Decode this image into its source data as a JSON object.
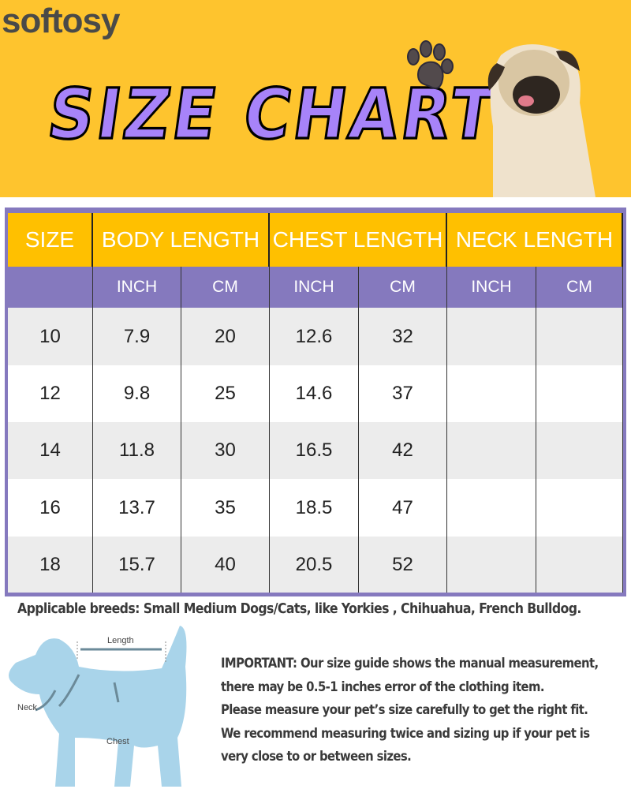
{
  "brand": "softosy",
  "title": "SIZE CHART",
  "colors": {
    "banner": "#fec42e",
    "title": "#a783f9",
    "header": "#ffc000",
    "subheader": "#8579be",
    "row_alt": "#ececec"
  },
  "table": {
    "headers": [
      "SIZE",
      "BODY LENGTH",
      "CHEST LENGTH",
      "NECK LENGTH"
    ],
    "subheaders": [
      "",
      "INCH",
      "CM",
      "INCH",
      "CM",
      "INCH",
      "CM"
    ],
    "rows": [
      [
        "10",
        "7.9",
        "20",
        "12.6",
        "32",
        "",
        ""
      ],
      [
        "12",
        "9.8",
        "25",
        "14.6",
        "37",
        "",
        ""
      ],
      [
        "14",
        "11.8",
        "30",
        "16.5",
        "42",
        "",
        ""
      ],
      [
        "16",
        "13.7",
        "35",
        "18.5",
        "47",
        "",
        ""
      ],
      [
        "18",
        "15.7",
        "40",
        "20.5",
        "52",
        "",
        ""
      ]
    ]
  },
  "breeds": "Applicable breeds: Small Medium Dogs/Cats, like Yorkies , Chihuahua, French Bulldog.",
  "diagram": {
    "length": "Length",
    "neck": "Neck",
    "chest": "Chest"
  },
  "important": [
    "IMPORTANT: Our size guide shows the manual measurement,",
    "there may be 0.5-1 inches error of the clothing item.",
    "Please measure your pet’s size carefully to get the right fit.",
    "We recommend measuring twice and sizing up if your pet is",
    "very close to or between sizes."
  ]
}
